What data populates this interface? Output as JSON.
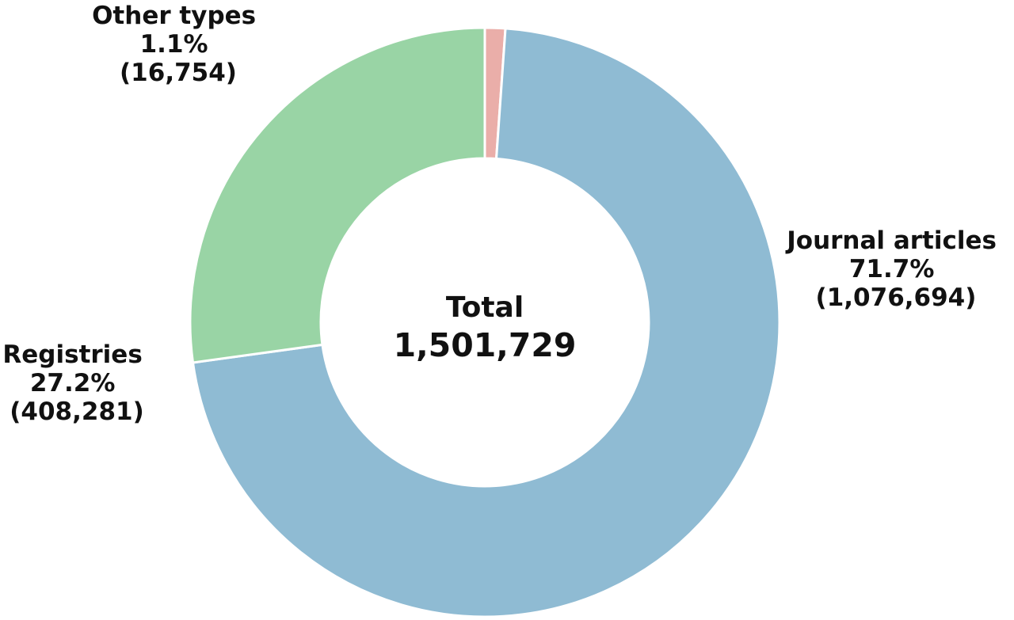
{
  "chart_data": {
    "type": "pie",
    "variant": "donut",
    "start_angle_deg": 90,
    "direction": "clockwise",
    "center": {
      "title": "Total",
      "value": "1,501,729"
    },
    "slices": [
      {
        "label": "Other types",
        "value": 16754,
        "value_text": "(16,754)",
        "percent_text": "1.1%",
        "color": "#eaaea9"
      },
      {
        "label": "Journal articles",
        "value": 1076694,
        "value_text": "(1,076,694)",
        "percent_text": "71.7%",
        "color": "#8fbbd3"
      },
      {
        "label": "Registries",
        "value": 408281,
        "value_text": "(408,281)",
        "percent_text": "27.2%",
        "color": "#99d4a5"
      }
    ]
  }
}
